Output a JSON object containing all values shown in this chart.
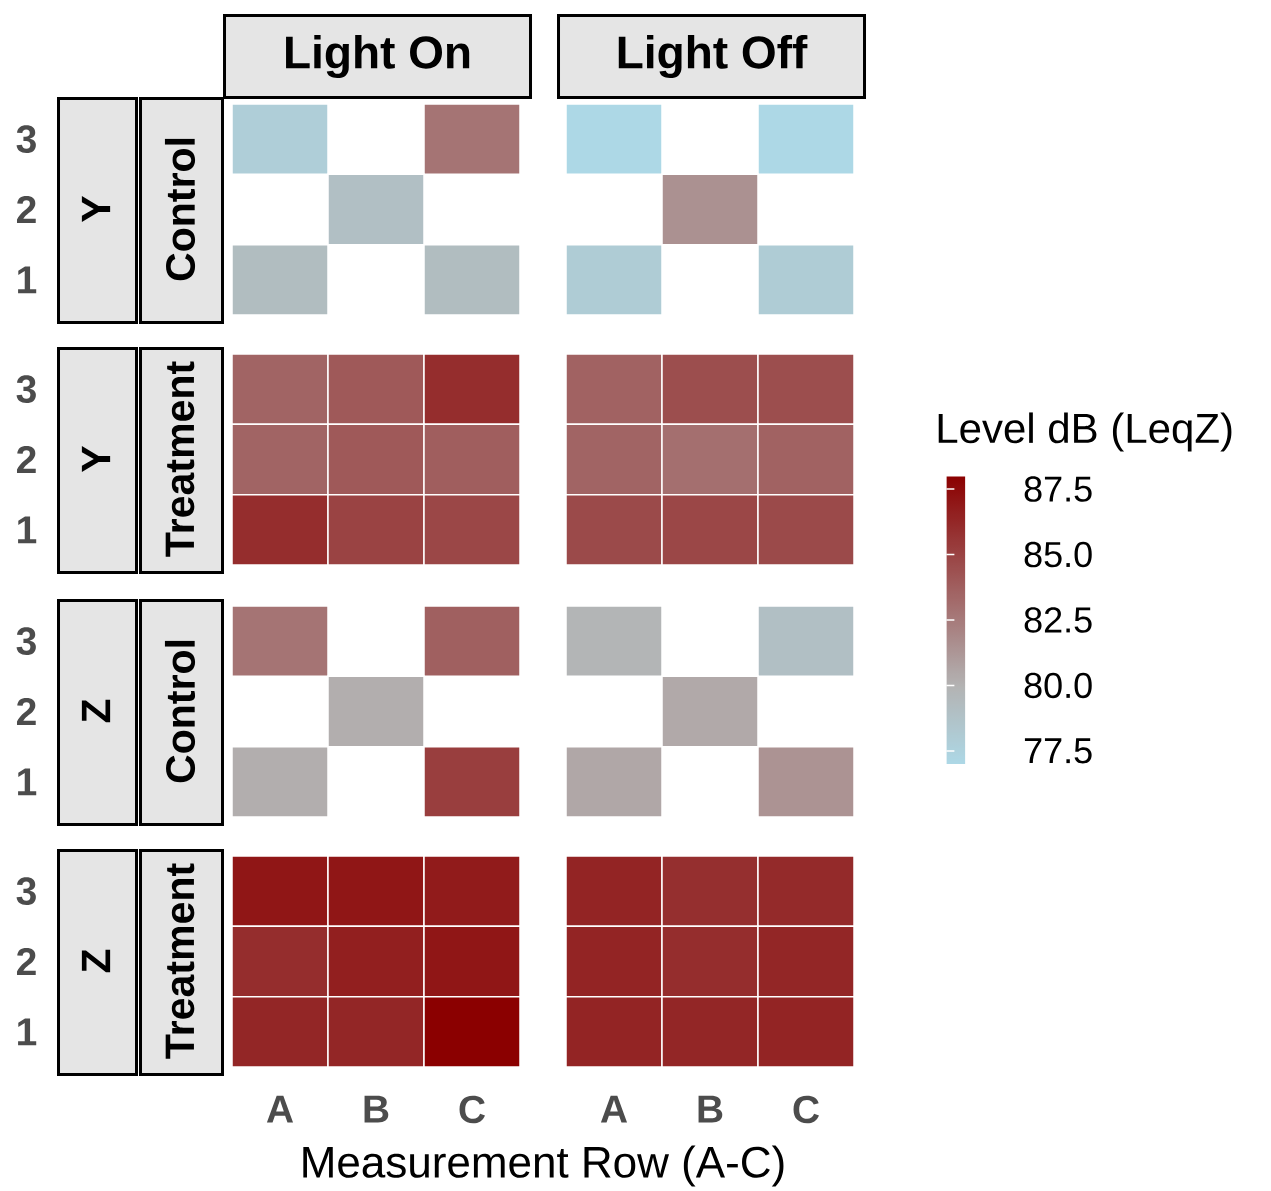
{
  "chart_data": {
    "type": "heatmap",
    "xlabel": "Measurement Row (A-C)",
    "clabel": "Level dB (LeqZ)",
    "annotations": [
      "Light On",
      "Light Off",
      "Y",
      "Control",
      "Y",
      "Treatment",
      "Z",
      "Control",
      "Z",
      "Treatment"
    ],
    "categories": [
      "A",
      "B",
      "C",
      "A",
      "B",
      "C"
    ],
    "y_categories": [
      "3",
      "2",
      "1",
      "3",
      "2",
      "1",
      "3",
      "2",
      "1",
      "3",
      "2",
      "1"
    ],
    "cells": [
      [
        77.8,
        null,
        82.8,
        77.0,
        null,
        77.0
      ],
      [
        null,
        79.0,
        null,
        null,
        81.5,
        null
      ],
      [
        79.2,
        null,
        79.2,
        78.0,
        null,
        78.0
      ],
      [
        83.5,
        84.0,
        86.0,
        83.6,
        84.5,
        84.5
      ],
      [
        83.5,
        84.0,
        83.8,
        83.5,
        83.0,
        83.6
      ],
      [
        86.0,
        85.0,
        84.8,
        84.7,
        84.8,
        84.7
      ],
      [
        82.8,
        null,
        83.7,
        79.8,
        null,
        79.0
      ],
      [
        null,
        80.2,
        null,
        null,
        80.4,
        null
      ],
      [
        80.2,
        null,
        85.2,
        80.5,
        null,
        81.4
      ],
      [
        87.0,
        87.0,
        86.8,
        86.4,
        85.9,
        86.1
      ],
      [
        86.0,
        86.6,
        87.0,
        86.4,
        86.0,
        86.3
      ],
      [
        86.3,
        86.3,
        88.0,
        86.4,
        86.3,
        86.4
      ]
    ],
    "clim": [
      77.0,
      88.0
    ],
    "cticks": [
      77.5,
      {
        "value": 80,
        "label": "80.0"
      },
      82.5,
      {
        "value": 85,
        "label": "85.0"
      },
      87.5
    ]
  }
}
